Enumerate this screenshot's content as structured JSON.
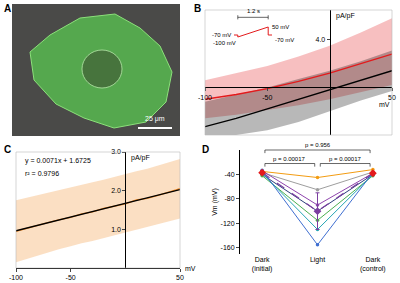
{
  "chart_data": [
    {
      "type": "image",
      "label": "A",
      "scale_bar": "25 μm"
    },
    {
      "type": "line",
      "label": "B",
      "xlabel": "mV",
      "ylabel": "pA/pF",
      "grid": false,
      "x": [
        -100,
        -75,
        -50,
        -25,
        0,
        25,
        50
      ],
      "series": [
        {
          "color": "#e31a1c",
          "values": [
            -1.0,
            -0.6,
            -0.1,
            0.5,
            1.2,
            2.0,
            2.8
          ],
          "lower": [
            -2.6,
            -2.3,
            -1.9,
            -1.5,
            -1.0,
            -0.4,
            0.2
          ],
          "upper": [
            0.6,
            1.2,
            1.8,
            2.6,
            3.5,
            4.6,
            5.8
          ]
        },
        {
          "color": "#000000",
          "values": [
            -3.3,
            -2.6,
            -1.8,
            -1.0,
            -0.2,
            0.6,
            1.4
          ],
          "lower": [
            -4.2,
            -4.0,
            -3.6,
            -2.9,
            -2.0,
            -1.1,
            -0.3
          ],
          "upper": [
            -1.2,
            -0.6,
            0.0,
            0.7,
            1.4,
            2.2,
            3.1
          ]
        }
      ],
      "xlim": [
        -100,
        50
      ],
      "xticks": [
        -100,
        -50,
        50
      ],
      "ylim": [
        -4,
        6.5
      ],
      "yticks": [
        {
          "value": 4,
          "label": "4.0"
        }
      ],
      "inset": {
        "type": "line",
        "color": "#e31a1c",
        "x": [
          0,
          0.15,
          0.15,
          1.35,
          1.35,
          1.5
        ],
        "values": [
          -70,
          -70,
          -100,
          50,
          -70,
          -70
        ],
        "labels": [
          "1.2 s",
          "50 mV",
          "-70 mV",
          "-100 mV",
          "-70 mV"
        ]
      }
    },
    {
      "type": "line",
      "label": "C",
      "xlabel": "mV",
      "ylabel": "pA/pF",
      "grid": false,
      "annotations": [
        "y = 0.0071x + 1.6725",
        "r² = 0.9796"
      ],
      "series": [
        {
          "color": "#f28c28",
          "x": [
            -100,
            -90,
            -80,
            -70,
            -60,
            -50,
            -40,
            -30,
            -20,
            -10,
            0,
            10,
            20,
            30,
            40,
            50
          ],
          "values": [
            0.95,
            1.03,
            1.1,
            1.18,
            1.25,
            1.31,
            1.4,
            1.45,
            1.54,
            1.6,
            1.66,
            1.76,
            1.8,
            1.88,
            1.96,
            2.05
          ],
          "lower": [
            0.15,
            0.24,
            0.33,
            0.41,
            0.49,
            0.56,
            0.64,
            0.7,
            0.78,
            0.85,
            0.92,
            0.99,
            1.06,
            1.13,
            1.2,
            1.28
          ],
          "upper": [
            1.75,
            1.82,
            1.89,
            1.95,
            2.02,
            2.08,
            2.15,
            2.22,
            2.28,
            2.36,
            2.42,
            2.5,
            2.57,
            2.65,
            2.73,
            2.82
          ]
        },
        {
          "color": "#000000",
          "x": [
            -100,
            50
          ],
          "values": [
            0.9625,
            2.0275
          ]
        }
      ],
      "xlim": [
        -100,
        50
      ],
      "xticks": [
        -100,
        -50,
        50
      ],
      "ylim": [
        0,
        3
      ],
      "yticks": [
        {
          "value": 1,
          "label": "1.0"
        },
        {
          "value": 2,
          "label": "2.0"
        },
        {
          "value": 3,
          "label": "3.0"
        }
      ]
    },
    {
      "type": "line",
      "label": "D",
      "ylabel": "Vm (mV)",
      "grid": false,
      "categories": [
        "Dark\n(initial)",
        "Light",
        "Dark\n(control)"
      ],
      "series": [
        {
          "color": "#f39c12",
          "marker": "circle",
          "values": [
            -35,
            -45,
            -32
          ]
        },
        {
          "color": "#9e9e9e",
          "marker": "circle",
          "values": [
            -37,
            -65,
            -36
          ]
        },
        {
          "color": "#8e44ad",
          "marker": "circle",
          "values": [
            -34,
            -90,
            -38
          ]
        },
        {
          "color": "#2c3e7a",
          "marker": "circle",
          "values": [
            -40,
            -100,
            -40
          ]
        },
        {
          "color": "#4caf50",
          "marker": "circle",
          "values": [
            -42,
            -115,
            -42
          ]
        },
        {
          "color": "#26a6b5",
          "marker": "circle",
          "values": [
            -38,
            -130,
            -40
          ]
        },
        {
          "color": "#3f6fd1",
          "marker": "circle",
          "values": [
            -33,
            -155,
            -37
          ]
        },
        {
          "colors": [
            "#e31a1c",
            "#7b3fa0",
            "#e31a1c"
          ],
          "marker": "diamond",
          "line_style": "dash",
          "values": [
            -37,
            -100,
            -38
          ],
          "error": [
            3,
            30,
            3
          ]
        }
      ],
      "comparisons": [
        {
          "from": 0,
          "to": 1,
          "label": "p = 0.00017"
        },
        {
          "from": 1,
          "to": 2,
          "label": "p = 0.00017"
        },
        {
          "from": 0,
          "to": 2,
          "label": "p = 0.956"
        }
      ],
      "ylim": [
        -170,
        0
      ],
      "yticks": [
        -160,
        -120,
        -80,
        -40
      ]
    }
  ]
}
